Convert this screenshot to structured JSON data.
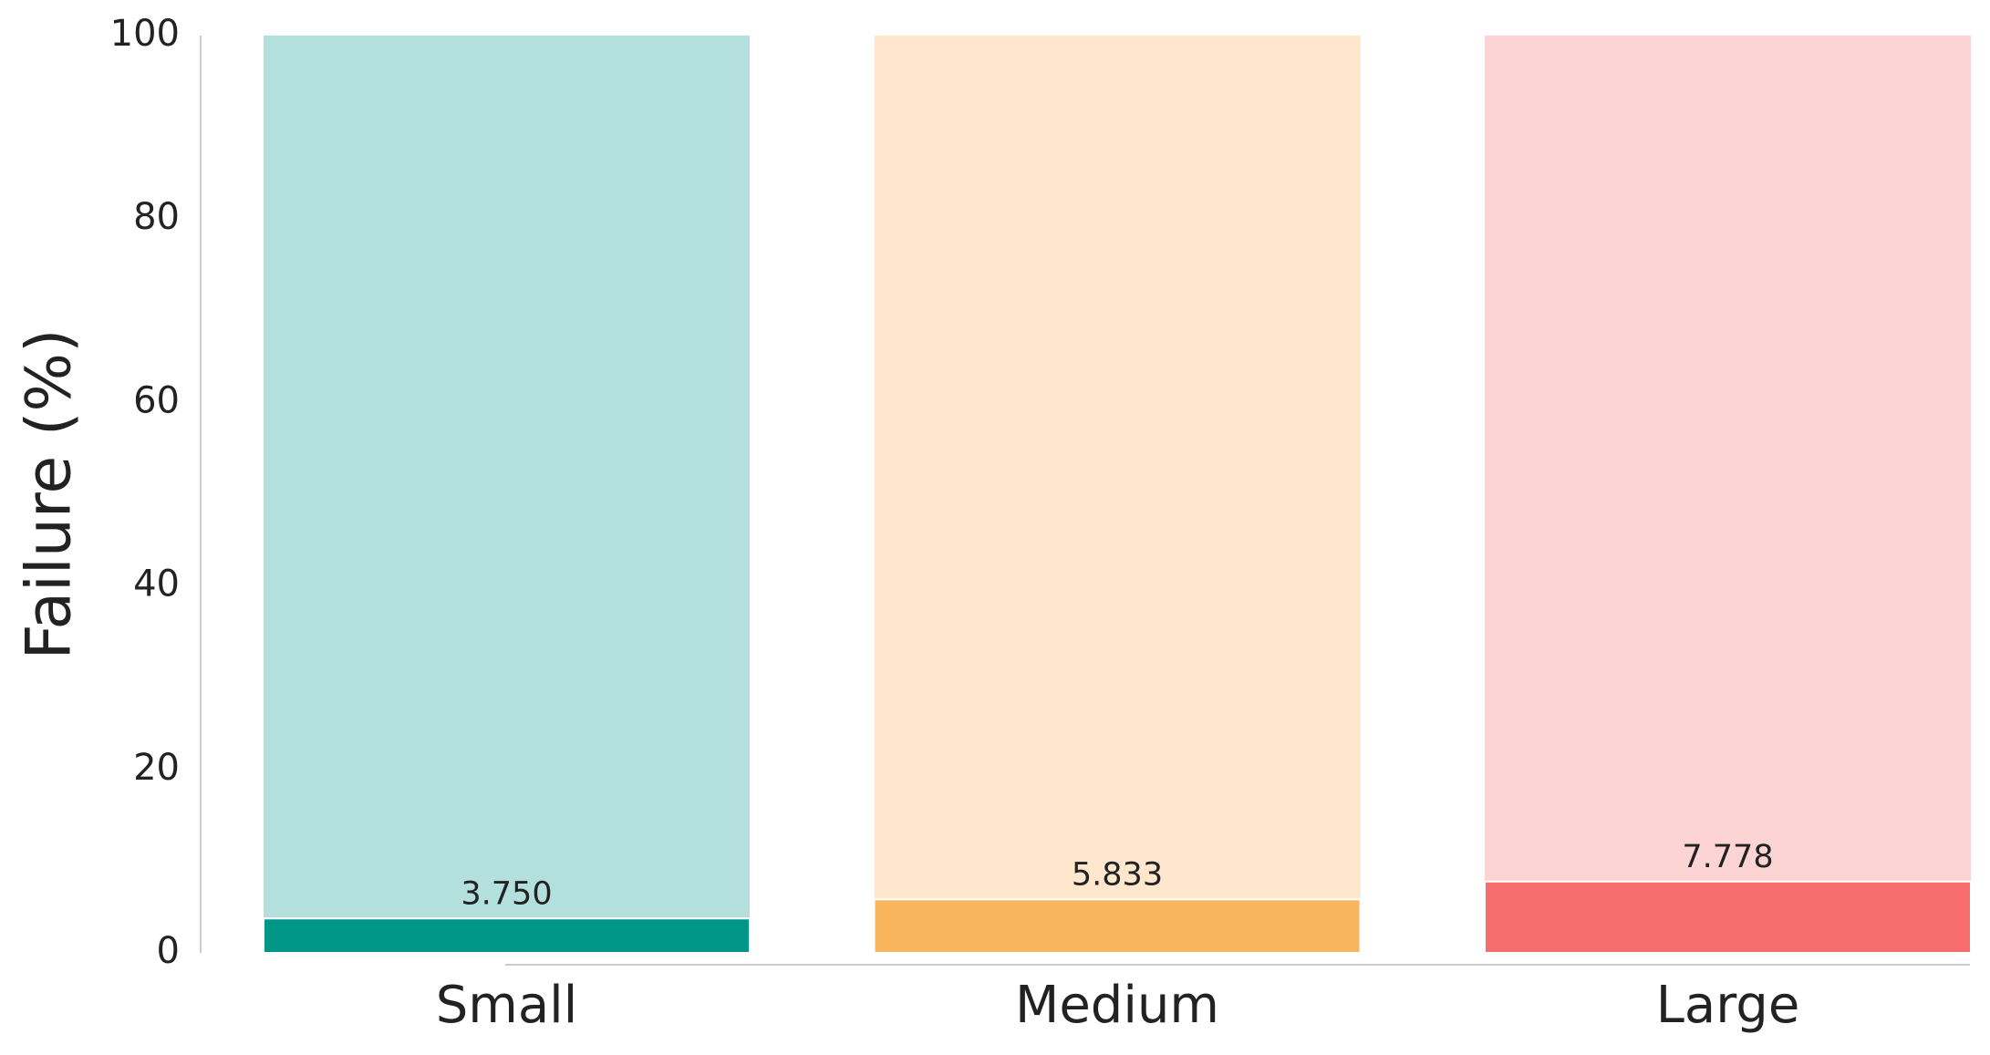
{
  "chart_data": {
    "type": "bar",
    "y_label": "Failure (%)",
    "categories": [
      "Small",
      "Medium",
      "Large"
    ],
    "values": [
      3.75,
      5.833,
      7.778
    ],
    "value_labels": [
      "3.750",
      "5.833",
      "7.778"
    ],
    "colors": [
      "#009688",
      "#f8b55c",
      "#f76d6d"
    ],
    "totals": [
      100,
      100,
      100
    ],
    "total_colors": [
      "#b3dfdd",
      "#fee7cd",
      "#fcd4d3"
    ],
    "ylim": [
      0,
      100
    ],
    "yticks": [
      0,
      20,
      40,
      60,
      80,
      100
    ],
    "grid": false
  }
}
